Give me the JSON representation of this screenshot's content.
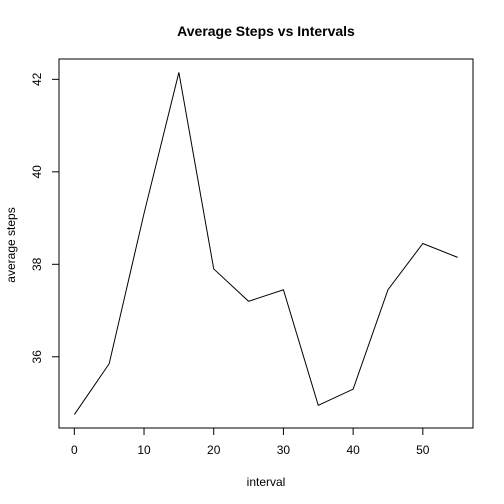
{
  "chart_data": {
    "type": "line",
    "title": "Average Steps vs Intervals",
    "xlabel": "interval",
    "ylabel": "average steps",
    "x": [
      0,
      5,
      10,
      15,
      20,
      25,
      30,
      35,
      40,
      45,
      50,
      55
    ],
    "y": [
      34.75,
      35.85,
      39.1,
      42.15,
      37.9,
      37.2,
      37.45,
      34.95,
      35.3,
      37.45,
      38.45,
      38.15
    ],
    "xlim": [
      -2.2,
      57.2
    ],
    "ylim": [
      34.46,
      42.44
    ],
    "xticks": [
      0,
      10,
      20,
      30,
      40,
      50
    ],
    "yticks": [
      36,
      38,
      40,
      42
    ],
    "grid": false,
    "legend": "none",
    "line_color": "#000000"
  }
}
